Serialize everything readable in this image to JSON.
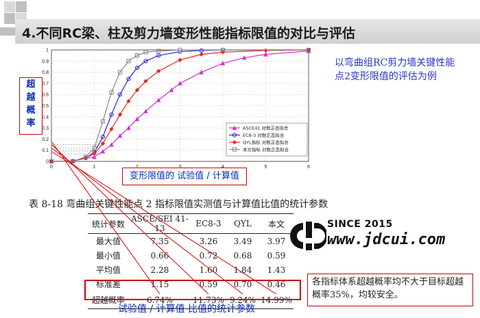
{
  "page_title": "4.不同RC梁、柱及剪力墙变形性能指标限值的对比与评估",
  "y_axis_label": [
    "超",
    "越",
    "概",
    "率"
  ],
  "x_axis_label": "变形限值的 试验值 / 计算值",
  "note": "以弯曲组RC剪力墙关键性能点2变形限值的评估为例",
  "table_caption": "表  8-18  弯曲组关键性能点 2 指标限值实测值与计算值比值的统计参数",
  "table": {
    "headers": [
      "统计参数",
      "ASCE/SEI 41-13",
      "EC8-3",
      "QYL",
      "本文"
    ],
    "rows": [
      [
        "最大值",
        "7.35",
        "3.26",
        "3.49",
        "3.97"
      ],
      [
        "最小值",
        "0.66",
        "0.72",
        "0.68",
        "0.59"
      ],
      [
        "平均值",
        "2.28",
        "1.60",
        "1.84",
        "1.43"
      ],
      [
        "标准差",
        "1.15",
        "0.59",
        "0.70",
        "0.46"
      ],
      [
        "超越概率",
        "6.74%",
        "11.73%",
        "9.24%",
        "14.99%"
      ]
    ]
  },
  "logo": {
    "since": "SINCE 2015",
    "url": "www.jdcui.com",
    "mark": "CJD"
  },
  "conclusion": "各指标体系超越概率均不大于目标超越概率35%，均较安全。",
  "bottom_caption": "试验值 / 计算值 比值的统计参数",
  "chart_data": {
    "type": "line",
    "title": "",
    "xlabel": "变形限值的 试验值 / 计算值",
    "ylabel": "超越概率",
    "xlim": [
      0,
      6
    ],
    "ylim": [
      0,
      1
    ],
    "x_ticks": [
      "0",
      "1",
      "2",
      "3",
      "4",
      "5",
      "6"
    ],
    "y_ticks": [
      "0",
      "0.1",
      "0.2",
      "0.3",
      "0.4",
      "0.5",
      "0.6",
      "0.7",
      "0.8",
      "0.9",
      "1"
    ],
    "grid": true,
    "legend_position": "bottom-right",
    "reference_probabilities": [
      0.0674,
      0.1173,
      0.0924,
      0.1499
    ],
    "series": [
      {
        "name": "ASCE41 对数正态拟合",
        "color": "#cc33cc",
        "marker": "triangle",
        "x": [
          0,
          0.5,
          1.0,
          1.2,
          1.4,
          1.6,
          1.8,
          2.0,
          2.2,
          2.5,
          2.8,
          3.0,
          3.5,
          4.0,
          4.5,
          5.0,
          6.0
        ],
        "y": [
          0,
          0.005,
          0.04,
          0.09,
          0.15,
          0.23,
          0.3,
          0.38,
          0.45,
          0.55,
          0.64,
          0.7,
          0.8,
          0.88,
          0.93,
          0.96,
          0.99
        ]
      },
      {
        "name": "EC8-3 对数正态拟合",
        "color": "#2222dd",
        "marker": "circle",
        "x": [
          0,
          0.5,
          0.8,
          1.0,
          1.2,
          1.4,
          1.6,
          1.8,
          2.0,
          2.2,
          2.5,
          3.0,
          3.5,
          4.0,
          6.0
        ],
        "y": [
          0,
          0.003,
          0.03,
          0.08,
          0.22,
          0.42,
          0.6,
          0.74,
          0.84,
          0.9,
          0.95,
          0.985,
          0.995,
          1.0,
          1.0
        ]
      },
      {
        "name": "QYL指标 对数正态拟合",
        "color": "#ee2222",
        "marker": "diamond",
        "x": [
          0,
          0.5,
          0.8,
          1.0,
          1.2,
          1.4,
          1.6,
          1.8,
          2.0,
          2.2,
          2.5,
          3.0,
          3.5,
          4.0,
          5.0,
          6.0
        ],
        "y": [
          0,
          0.004,
          0.03,
          0.07,
          0.16,
          0.29,
          0.42,
          0.54,
          0.64,
          0.72,
          0.81,
          0.91,
          0.96,
          0.98,
          0.995,
          1.0
        ]
      },
      {
        "name": "本文指标 对数正态拟合",
        "color": "#888888",
        "marker": "square",
        "x": [
          0,
          0.5,
          0.8,
          1.0,
          1.2,
          1.4,
          1.6,
          1.8,
          2.0,
          2.2,
          2.5,
          3.0,
          4.0,
          6.0
        ],
        "y": [
          0,
          0.002,
          0.04,
          0.12,
          0.36,
          0.62,
          0.8,
          0.9,
          0.95,
          0.98,
          0.99,
          1.0,
          1.0,
          1.0
        ]
      }
    ]
  }
}
